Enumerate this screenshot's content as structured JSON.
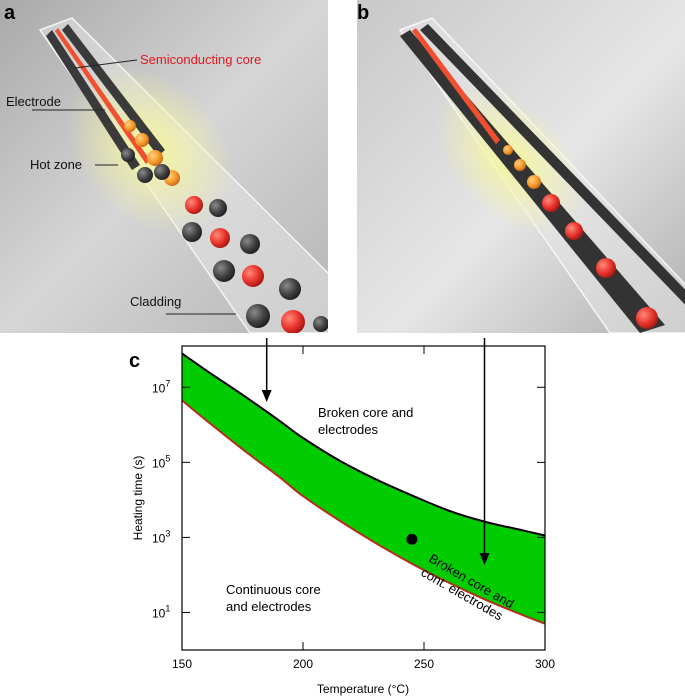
{
  "panels": {
    "a": {
      "letter": "a",
      "labels": {
        "core": "Semiconducting core",
        "electrode": "Electrode",
        "hot_zone": "Hot zone",
        "cladding": "Cladding"
      }
    },
    "b": {
      "letter": "b"
    },
    "c": {
      "letter": "c"
    }
  },
  "colors": {
    "core_label": "#e0191f",
    "band_fill": "#00cc00",
    "upper_curve": "#000000",
    "lower_curve": "#b0301c",
    "glow": "#f4f57a"
  },
  "chart_data": {
    "type": "area",
    "xlabel": "Temperature (°C)",
    "ylabel": "Heating time (s)",
    "xlim": [
      150,
      300
    ],
    "ylim_log10": [
      0,
      8.1
    ],
    "y_scale": "log",
    "x_ticks": [
      {
        "value": 150,
        "label": "150"
      },
      {
        "value": 200,
        "label": "200"
      },
      {
        "value": 250,
        "label": "250"
      },
      {
        "value": 300,
        "label": "300"
      }
    ],
    "y_ticks": [
      {
        "log10": 1,
        "base": "10",
        "exp": "1"
      },
      {
        "log10": 3,
        "base": "10",
        "exp": "3"
      },
      {
        "log10": 5,
        "base": "10",
        "exp": "5"
      },
      {
        "log10": 7,
        "base": "10",
        "exp": "7"
      }
    ],
    "upper_boundary": {
      "x": [
        150,
        160,
        175,
        190,
        200,
        215,
        230,
        245,
        260,
        275,
        290,
        300
      ],
      "log10_y": [
        7.9,
        7.45,
        6.8,
        6.12,
        5.65,
        5.05,
        4.55,
        4.12,
        3.72,
        3.42,
        3.2,
        3.05
      ]
    },
    "lower_boundary": {
      "x": [
        150,
        160,
        175,
        190,
        200,
        215,
        230,
        245,
        260,
        275,
        290,
        300
      ],
      "log10_y": [
        6.65,
        6.12,
        5.35,
        4.62,
        4.1,
        3.45,
        2.85,
        2.3,
        1.8,
        1.35,
        0.95,
        0.7
      ]
    },
    "point": {
      "x": 245,
      "log10_y": 2.95
    },
    "regions": {
      "above": [
        "Broken core and",
        "electrodes"
      ],
      "band": [
        "Broken core and",
        "cont. electrodes"
      ],
      "below": [
        "Continuous core",
        "and electrodes"
      ]
    },
    "arrows_from_panels": [
      {
        "panel": "a",
        "x": 185
      },
      {
        "panel": "b",
        "x": 275
      }
    ]
  }
}
